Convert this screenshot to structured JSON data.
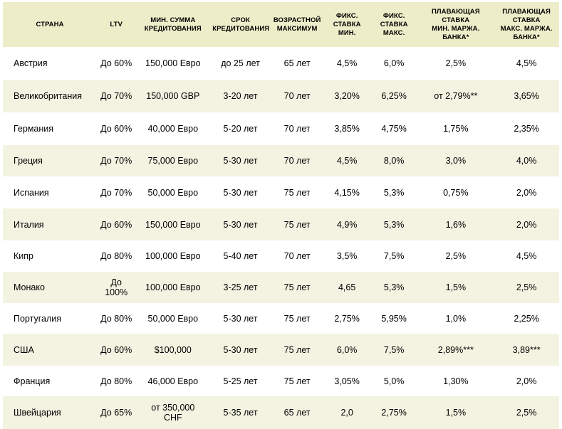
{
  "header": {
    "country": "Страна",
    "ltv": "LTV",
    "min_amount": "Мин. сумма\nкредитования",
    "term": "Срок\nкредитования",
    "age_max": "Возрастной\nмаксимум",
    "fixed_min": "Фикс.\nставка\nмин.",
    "fixed_max": "Фикс.\nставка\nмакс.",
    "float_min": "Плавающая\nставка\nмин. маржа.\nбанка*",
    "float_max": "Плавающая\nставка\nмакс. маржа.\nбанка*"
  },
  "rows": [
    {
      "country": "Австрия",
      "ltv": "До 60%",
      "min_amount": "150,000 Евро",
      "term": "до 25 лет",
      "age_max": "65 лет",
      "fixed_min": "4,5%",
      "fixed_max": "6,0%",
      "float_min": "2,5%",
      "float_max": "4,5%"
    },
    {
      "country": "Великобритания",
      "ltv": "До 70%",
      "min_amount": "150,000 GBP",
      "term": "3-20 лет",
      "age_max": "70 лет",
      "fixed_min": "3,20%",
      "fixed_max": "6,25%",
      "float_min": "от 2,79%**",
      "float_max": "3,65%"
    },
    {
      "country": "Германия",
      "ltv": "До 60%",
      "min_amount": "40,000 Евро",
      "term": "5-20 лет",
      "age_max": "70 лет",
      "fixed_min": "3,85%",
      "fixed_max": "4,75%",
      "float_min": "1,75%",
      "float_max": "2,35%"
    },
    {
      "country": "Греция",
      "ltv": "До 70%",
      "min_amount": "75,000 Евро",
      "term": "5-30 лет",
      "age_max": "70 лет",
      "fixed_min": "4,5%",
      "fixed_max": "8,0%",
      "float_min": "3,0%",
      "float_max": "4,0%"
    },
    {
      "country": "Испания",
      "ltv": "До 70%",
      "min_amount": "50,000 Евро",
      "term": "5-30 лет",
      "age_max": "75 лет",
      "fixed_min": "4,15%",
      "fixed_max": "5,3%",
      "float_min": "0,75%",
      "float_max": "2,0%"
    },
    {
      "country": "Италия",
      "ltv": "До 60%",
      "min_amount": "150,000 Евро",
      "term": "5-30 лет",
      "age_max": "75 лет",
      "fixed_min": "4,9%",
      "fixed_max": "5,3%",
      "float_min": "1,6%",
      "float_max": "2,0%"
    },
    {
      "country": "Кипр",
      "ltv": "До 80%",
      "min_amount": "100,000 Евро",
      "term": "5-40 лет",
      "age_max": "70 лет",
      "fixed_min": "3,5%",
      "fixed_max": "7,5%",
      "float_min": "2,5%",
      "float_max": "4,5%"
    },
    {
      "country": "Монако",
      "ltv": "До\n100%",
      "min_amount": "100,000 Евро",
      "term": "3-25 лет",
      "age_max": "75 лет",
      "fixed_min": "4,65",
      "fixed_max": "5,3%",
      "float_min": "1,5%",
      "float_max": "2,5%"
    },
    {
      "country": "Португалия",
      "ltv": "До 80%",
      "min_amount": "50,000 Евро",
      "term": "5-30 лет",
      "age_max": "75 лет",
      "fixed_min": "2,75%",
      "fixed_max": "5,95%",
      "float_min": "1,0%",
      "float_max": "2,25%"
    },
    {
      "country": "США",
      "ltv": "До 60%",
      "min_amount": "$100,000",
      "term": "5-30 лет",
      "age_max": "75 лет",
      "fixed_min": "6,0%",
      "fixed_max": "7,5%",
      "float_min": "2,89%***",
      "float_max": "3,89***"
    },
    {
      "country": "Франция",
      "ltv": "До 80%",
      "min_amount": "46,000 Евро",
      "term": "5-25 лет",
      "age_max": "75 лет",
      "fixed_min": "3,05%",
      "fixed_max": "5,0%",
      "float_min": "1,30%",
      "float_max": "2,0%"
    },
    {
      "country": "Швейцария",
      "ltv": "До 65%",
      "min_amount": "от 350,000\nCHF",
      "term": "5-35 лет",
      "age_max": "65 лет",
      "fixed_min": "2,0",
      "fixed_max": "2,75%",
      "float_min": "1,5%",
      "float_max": "2,5%"
    }
  ],
  "colors": {
    "header_bg": "#ededc9",
    "row_alt_bg": "#f3f3e2",
    "row_bg": "#ffffff"
  }
}
